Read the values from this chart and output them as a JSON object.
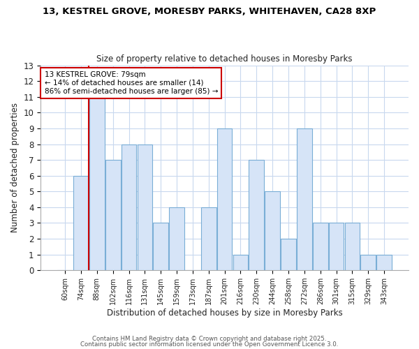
{
  "title_line1": "13, KESTREL GROVE, MORESBY PARKS, WHITEHAVEN, CA28 8XP",
  "title_line2": "Size of property relative to detached houses in Moresby Parks",
  "xlabel": "Distribution of detached houses by size in Moresby Parks",
  "ylabel": "Number of detached properties",
  "bin_labels": [
    "60sqm",
    "74sqm",
    "88sqm",
    "102sqm",
    "116sqm",
    "131sqm",
    "145sqm",
    "159sqm",
    "173sqm",
    "187sqm",
    "201sqm",
    "216sqm",
    "230sqm",
    "244sqm",
    "258sqm",
    "272sqm",
    "286sqm",
    "301sqm",
    "315sqm",
    "329sqm",
    "343sqm"
  ],
  "bar_values": [
    0,
    6,
    11,
    7,
    8,
    8,
    3,
    4,
    0,
    4,
    9,
    1,
    7,
    5,
    2,
    9,
    3,
    3,
    3,
    1,
    1
  ],
  "bar_color": "#d6e4f7",
  "bar_edge_color": "#7aaed6",
  "red_line_x": 1.5,
  "annotation_title": "13 KESTREL GROVE: 79sqm",
  "annotation_line1": "← 14% of detached houses are smaller (14)",
  "annotation_line2": "86% of semi-detached houses are larger (85) →",
  "annotation_box_color": "#ffffff",
  "annotation_box_edge": "#cc0000",
  "footer1": "Contains HM Land Registry data © Crown copyright and database right 2025.",
  "footer2": "Contains public sector information licensed under the Open Government Licence 3.0.",
  "ylim": [
    0,
    13
  ],
  "yticks": [
    0,
    1,
    2,
    3,
    4,
    5,
    6,
    7,
    8,
    9,
    10,
    11,
    12,
    13
  ],
  "background_color": "#ffffff",
  "plot_background": "#ffffff",
  "grid_color": "#c8d8ee"
}
